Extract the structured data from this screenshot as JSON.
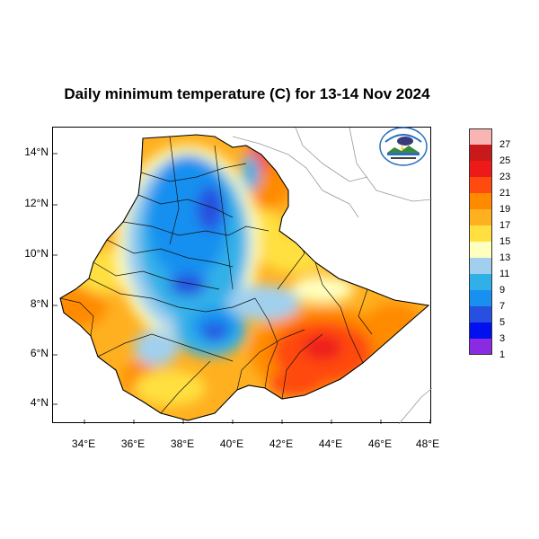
{
  "title": "Daily minimum temperature (C) for 13-14 Nov 2024",
  "y_ticks": [
    "14°N",
    "12°N",
    "10°N",
    "8°N",
    "6°N",
    "4°N"
  ],
  "x_ticks": [
    "34°E",
    "36°E",
    "38°E",
    "40°E",
    "42°E",
    "44°E",
    "46°E",
    "48°E"
  ],
  "legend": {
    "labels": [
      "27",
      "25",
      "23",
      "21",
      "19",
      "17",
      "15",
      "13",
      "11",
      "9",
      "7",
      "5",
      "3",
      "1"
    ],
    "colors": [
      "#f9b4b4",
      "#c81a1a",
      "#ee1a1a",
      "#ff4a10",
      "#ff8a00",
      "#ffb020",
      "#ffe040",
      "#ffffc0",
      "#a0d0ee",
      "#30b0e8",
      "#1890f0",
      "#2850e0",
      "#0010ee",
      "#8a2be2"
    ]
  },
  "logo": {
    "icon": "ethiopian-meteorology-institute-logo"
  }
}
